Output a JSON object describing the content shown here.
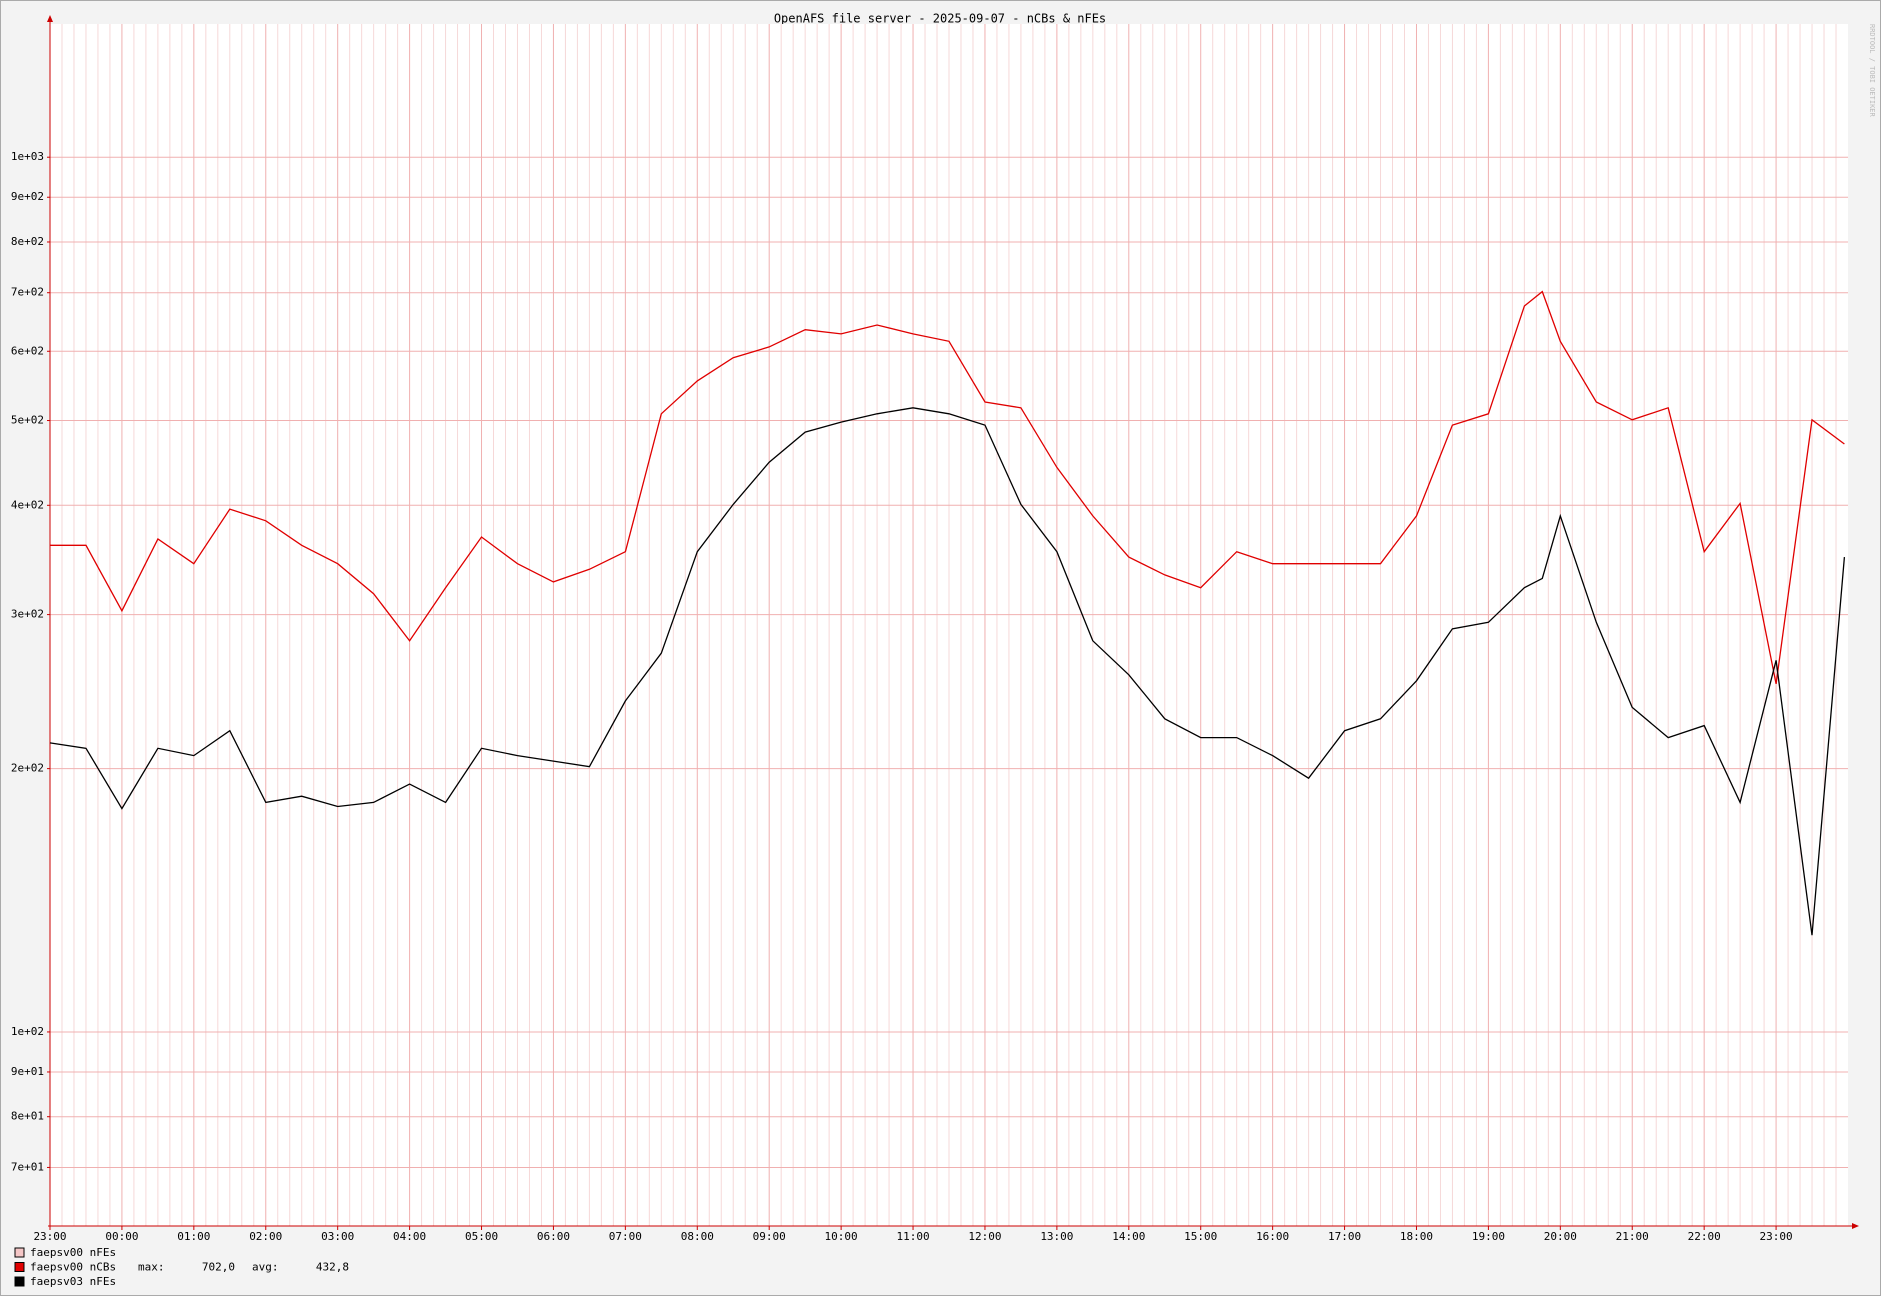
{
  "chart_data": {
    "type": "line",
    "title": "OpenAFS file server - 2025-09-07 - nCBs & nFEs",
    "watermark": "RRDTOOL / TOBI OETIKER",
    "log_scale": true,
    "grid": true,
    "xlim": [
      0,
      25
    ],
    "xticks": [
      {
        "value": 0,
        "label": "23:00"
      },
      {
        "value": 1,
        "label": "00:00"
      },
      {
        "value": 2,
        "label": "01:00"
      },
      {
        "value": 3,
        "label": "02:00"
      },
      {
        "value": 4,
        "label": "03:00"
      },
      {
        "value": 5,
        "label": "04:00"
      },
      {
        "value": 6,
        "label": "05:00"
      },
      {
        "value": 7,
        "label": "06:00"
      },
      {
        "value": 8,
        "label": "07:00"
      },
      {
        "value": 9,
        "label": "08:00"
      },
      {
        "value": 10,
        "label": "09:00"
      },
      {
        "value": 11,
        "label": "10:00"
      },
      {
        "value": 12,
        "label": "11:00"
      },
      {
        "value": 13,
        "label": "12:00"
      },
      {
        "value": 14,
        "label": "13:00"
      },
      {
        "value": 15,
        "label": "14:00"
      },
      {
        "value": 16,
        "label": "15:00"
      },
      {
        "value": 17,
        "label": "16:00"
      },
      {
        "value": 18,
        "label": "17:00"
      },
      {
        "value": 19,
        "label": "18:00"
      },
      {
        "value": 20,
        "label": "19:00"
      },
      {
        "value": 21,
        "label": "20:00"
      },
      {
        "value": 22,
        "label": "21:00"
      },
      {
        "value": 23,
        "label": "22:00"
      },
      {
        "value": 24,
        "label": "23:00"
      }
    ],
    "ylim": [
      60,
      1420
    ],
    "yticks": [
      {
        "value": 70,
        "label": "7e+01"
      },
      {
        "value": 80,
        "label": "8e+01"
      },
      {
        "value": 90,
        "label": "9e+01"
      },
      {
        "value": 100,
        "label": "1e+02"
      },
      {
        "value": 200,
        "label": "2e+02"
      },
      {
        "value": 300,
        "label": "3e+02"
      },
      {
        "value": 400,
        "label": "4e+02"
      },
      {
        "value": 500,
        "label": "5e+02"
      },
      {
        "value": 600,
        "label": "6e+02"
      },
      {
        "value": 700,
        "label": "7e+02"
      },
      {
        "value": 800,
        "label": "8e+02"
      },
      {
        "value": 900,
        "label": "9e+02"
      },
      {
        "value": 1000,
        "label": "1e+03"
      }
    ],
    "x": [
      0,
      0.5,
      1,
      1.5,
      2,
      2.5,
      3,
      3.5,
      4,
      4.5,
      5,
      5.5,
      6,
      6.5,
      7,
      7.5,
      8,
      8.5,
      9,
      9.5,
      10,
      10.5,
      11,
      11.5,
      12,
      12.5,
      13,
      13.5,
      14,
      14.5,
      15,
      15.5,
      16,
      16.5,
      17,
      17.5,
      18,
      18.5,
      19,
      19.5,
      20,
      20.5,
      20.75,
      21,
      21.5,
      22,
      22.5,
      23,
      23.5,
      24,
      24.5,
      24.95
    ],
    "series": [
      {
        "name": "faepsv00 nFEs",
        "color": "#f4c6c6",
        "values": [
          null,
          null,
          null,
          null,
          null,
          null,
          null,
          null,
          null,
          null,
          null,
          null,
          null,
          null,
          null,
          null,
          null,
          null,
          null,
          null,
          null,
          null,
          null,
          null,
          null,
          null,
          null,
          null,
          null,
          null,
          null,
          null,
          null,
          null,
          null,
          null,
          null,
          null,
          null,
          null,
          null,
          null,
          null,
          null,
          null,
          null,
          null,
          null,
          null,
          null,
          null,
          null
        ]
      },
      {
        "name": "faepsv00 nCBs",
        "color": "#e00000",
        "stats": [
          {
            "label": "max:",
            "value": "702,0"
          },
          {
            "label": "avg:",
            "value": "432,8"
          }
        ],
        "values": [
          360,
          360,
          303,
          366,
          343,
          396,
          384,
          360,
          343,
          317,
          280,
          322,
          368,
          343,
          327,
          338,
          354,
          509,
          555,
          590,
          607,
          635,
          628,
          643,
          628,
          616,
          525,
          517,
          442,
          389,
          349,
          333,
          322,
          354,
          343,
          343,
          343,
          343,
          389,
          494,
          509,
          676,
          702,
          616,
          525,
          501,
          517,
          354,
          402,
          250,
          501,
          470
        ]
      },
      {
        "name": "faepsv03 nFEs",
        "color": "#000000",
        "values": [
          214,
          211,
          180,
          211,
          207,
          221,
          183,
          186,
          181,
          183,
          192,
          183,
          211,
          207,
          204,
          201,
          239,
          271,
          354,
          401,
          448,
          485,
          498,
          509,
          517,
          509,
          494,
          401,
          354,
          280,
          256,
          228,
          217,
          217,
          207,
          195,
          221,
          228,
          252,
          289,
          294,
          322,
          330,
          389,
          294,
          235,
          217,
          224,
          183,
          266,
          129,
          349
        ]
      }
    ]
  }
}
